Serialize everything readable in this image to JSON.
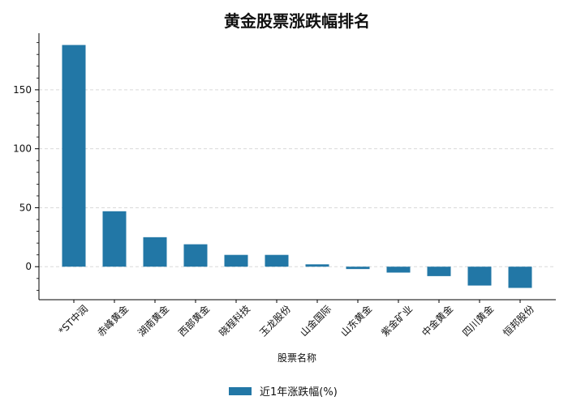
{
  "chart_data": {
    "type": "bar",
    "title": "黄金股票涨跌幅排名",
    "xlabel": "股票名称",
    "ylabel": "",
    "categories": [
      "*ST中润",
      "赤峰黄金",
      "湖南黄金",
      "西部黄金",
      "晓程科技",
      "玉龙股份",
      "山金国际",
      "山东黄金",
      "紫金矿业",
      "中金黄金",
      "四川黄金",
      "恒邦股份"
    ],
    "series": [
      {
        "name": "近1年涨跌幅(%)",
        "values": [
          188,
          47,
          25,
          19,
          10,
          10,
          2,
          -2,
          -5,
          -8,
          -16,
          -18
        ],
        "color": "#2277a6"
      }
    ],
    "ylim": [
      -28,
      198
    ],
    "yticks": [
      0,
      50,
      100,
      150
    ],
    "grid": "horizontal dashed",
    "legend": "bottom-center"
  }
}
